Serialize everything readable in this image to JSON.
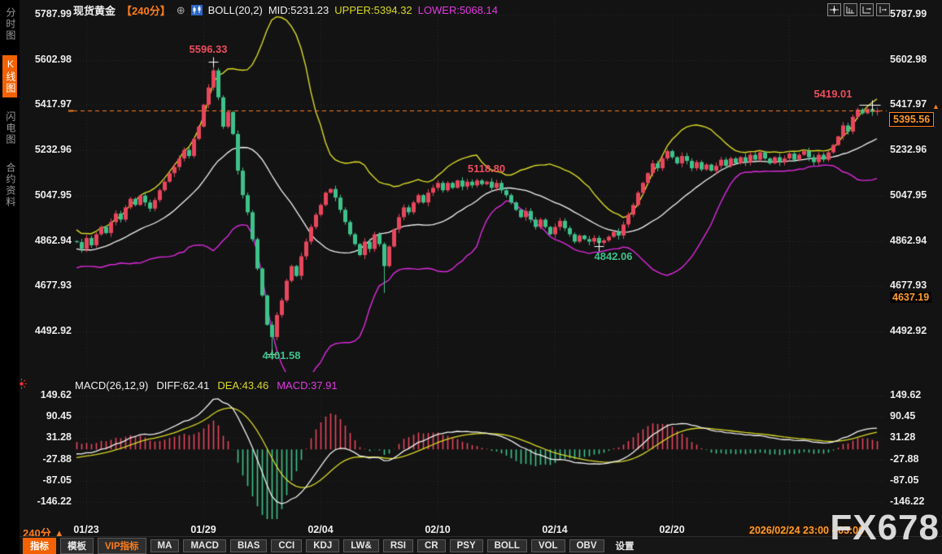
{
  "window": {
    "title": "现货黄金 240分 K线图"
  },
  "colors": {
    "bg": "#131313",
    "up": "#e8465c",
    "down": "#3ec28a",
    "boll_upper": "#d9d926",
    "boll_mid": "#f2f2f2",
    "boll_lower": "#dd2add",
    "accent": "#ff7e1e",
    "grid": "rgba(255,255,255,0.10)",
    "diff_line": "#f2f2f2",
    "dea_line": "#d9d926"
  },
  "sidebar": {
    "items": [
      {
        "label": "分时图",
        "active": false
      },
      {
        "label": "K线图",
        "active": true
      },
      {
        "label": "闪电图",
        "active": false
      },
      {
        "label": "合约资料",
        "active": false
      }
    ]
  },
  "header": {
    "symbol": "现货黄金",
    "period": "【240分】",
    "magnet_icon": "⊕",
    "boll_label": "BOLL(20,2)",
    "mid": "MID:5231.23",
    "upper": "UPPER:5394.32",
    "lower": "LOWER:5068.14"
  },
  "price_axis": {
    "current": "5395.56",
    "low_tag": {
      "text": "4637.19",
      "price": 4630
    },
    "arrow": "▲"
  },
  "macd_header": {
    "name": "MACD(26,12,9)",
    "diff": "DIFF:62.41",
    "dea": "DEA:43.46",
    "macd": "MACD:37.91"
  },
  "x_axis": {
    "current_range": "2026/02/24 23:00 - 03:00",
    "current_range_x": 918
  },
  "footer": {
    "period": "240分",
    "period_arrow": "▲",
    "buttons": [
      {
        "label": "指标",
        "variant": "active"
      },
      {
        "label": "模板",
        "variant": ""
      },
      {
        "label": "VIP指标",
        "variant": "vip"
      },
      {
        "label": "MA",
        "variant": ""
      },
      {
        "label": "MACD",
        "variant": ""
      },
      {
        "label": "BIAS",
        "variant": ""
      },
      {
        "label": "CCI",
        "variant": ""
      },
      {
        "label": "KDJ",
        "variant": ""
      },
      {
        "label": "LW&",
        "variant": ""
      },
      {
        "label": "RSI",
        "variant": ""
      },
      {
        "label": "CR",
        "variant": ""
      },
      {
        "label": "PSY",
        "variant": ""
      },
      {
        "label": "BOLL",
        "variant": ""
      },
      {
        "label": "VOL",
        "variant": ""
      },
      {
        "label": "OBV",
        "variant": ""
      },
      {
        "label": "设置",
        "variant": "plain"
      }
    ]
  },
  "watermark": "FX678",
  "annotations": [
    {
      "text": "5596.33",
      "tone": "up",
      "index": 27,
      "price": 5645
    },
    {
      "text": "5419.01",
      "tone": "up",
      "index": 155,
      "price": 5462
    },
    {
      "text": "5118.80",
      "tone": "up",
      "index": 84,
      "price": 5158
    },
    {
      "text": "4842.06",
      "tone": "down",
      "index": 110,
      "price": 4800
    },
    {
      "text": "4401.58",
      "tone": "down",
      "index": 42,
      "price": 4392
    }
  ],
  "chart_data": {
    "type": "candlestick",
    "instrument": "现货黄金",
    "interval_minutes": 240,
    "current_price": 5395.56,
    "boll": {
      "period": 20,
      "k": 2,
      "mid": 5231.23,
      "upper": 5394.32,
      "lower": 5068.14
    },
    "macd": {
      "slow": 26,
      "fast": 12,
      "signal": 9,
      "diff": 62.41,
      "dea": 43.46,
      "macd": 37.91
    },
    "price_ticks": [
      5787.99,
      5602.98,
      5417.97,
      5232.96,
      5047.95,
      4862.94,
      4677.93,
      4492.92
    ],
    "macd_ticks": [
      149.62,
      90.45,
      31.28,
      -27.88,
      -87.05,
      -146.22
    ],
    "date_labels": [
      {
        "text": "01/23",
        "index": 2
      },
      {
        "text": "01/29",
        "index": 26
      },
      {
        "text": "02/04",
        "index": 50
      },
      {
        "text": "02/10",
        "index": 74
      },
      {
        "text": "02/14",
        "index": 98
      },
      {
        "text": "02/20",
        "index": 122
      }
    ],
    "grid_cols": [
      2,
      26,
      50,
      74,
      98,
      122,
      146
    ],
    "first_open": 4862,
    "warmup_closes": [
      4950,
      4915,
      4880,
      4850,
      4820,
      4800,
      4780,
      4765,
      4775,
      4790,
      4805,
      4795,
      4815,
      4835,
      4825,
      4845,
      4865,
      4855,
      4875,
      4862
    ],
    "closes": [
      4858,
      4830,
      4875,
      4845,
      4890,
      4920,
      4895,
      4940,
      4975,
      4950,
      5000,
      5035,
      5010,
      5048,
      5020,
      4995,
      5030,
      5070,
      5105,
      5140,
      5165,
      5200,
      5235,
      5210,
      5280,
      5330,
      5420,
      5490,
      5560,
      5450,
      5330,
      5390,
      5300,
      5150,
      5050,
      4980,
      4870,
      4750,
      4640,
      4520,
      4470,
      4560,
      4620,
      4700,
      4760,
      4720,
      4800,
      4860,
      4920,
      4970,
      5010,
      5060,
      5075,
      5040,
      4990,
      4940,
      4890,
      4850,
      4805,
      4860,
      4830,
      4890,
      4850,
      4760,
      4840,
      4910,
      4960,
      5000,
      4980,
      5020,
      5050,
      5020,
      5060,
      5080,
      5100,
      5070,
      5100,
      5080,
      5110,
      5085,
      5105,
      5090,
      5110,
      5095,
      5105,
      5080,
      5100,
      5070,
      5050,
      5020,
      4990,
      4960,
      4985,
      4950,
      4920,
      4950,
      4920,
      4890,
      4920,
      4945,
      4915,
      4890,
      4860,
      4885,
      4870,
      4860,
      4875,
      4855,
      4865,
      4880,
      4900,
      4885,
      4930,
      4970,
      5010,
      5060,
      5100,
      5140,
      5180,
      5160,
      5200,
      5230,
      5205,
      5180,
      5210,
      5190,
      5160,
      5185,
      5155,
      5175,
      5150,
      5170,
      5195,
      5170,
      5200,
      5180,
      5205,
      5185,
      5215,
      5195,
      5225,
      5200,
      5180,
      5205,
      5185,
      5200,
      5220,
      5195,
      5215,
      5230,
      5205,
      5185,
      5215,
      5195,
      5225,
      5255,
      5290,
      5335,
      5310,
      5370,
      5400,
      5385,
      5402,
      5390,
      5395.56
    ],
    "extremes": {
      "28": {
        "high": 5596.33
      },
      "40": {
        "low": 4401.58
      },
      "63": {
        "low": 4650
      },
      "107": {
        "low": 4842.06
      },
      "163": {
        "high": 5419.01
      }
    },
    "markers": [
      {
        "index": 28,
        "price": 5596.33,
        "wide": false
      },
      {
        "index": 40,
        "price": 4401.58,
        "wide": false
      },
      {
        "index": 107,
        "price": 4842.06,
        "wide": false
      },
      {
        "index": 163,
        "price": 5419.01,
        "wide": true
      }
    ]
  }
}
